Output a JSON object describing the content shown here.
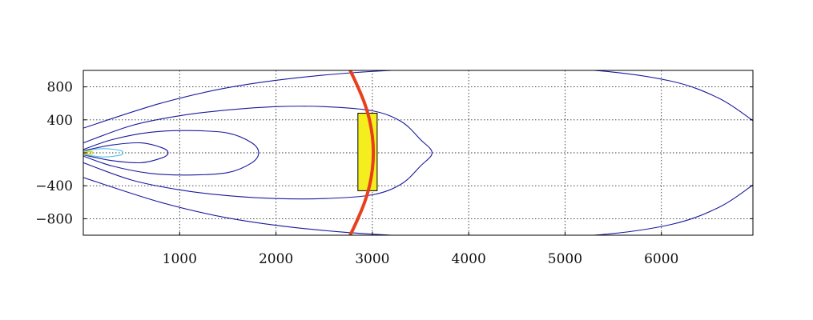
{
  "chart_data": {
    "type": "line",
    "title": "",
    "xlabel": "",
    "ylabel": "",
    "xlim": [
      0,
      6950
    ],
    "ylim": [
      -1000,
      1000
    ],
    "x_ticks": [
      1000,
      2000,
      3000,
      4000,
      5000,
      6000
    ],
    "y_ticks": [
      800,
      400,
      0,
      -400,
      -800
    ],
    "y_tick_labels": [
      "800",
      "400",
      "",
      "−400",
      "−800"
    ],
    "grid": true,
    "colors": {
      "contour": "#1a1a9e",
      "inner_contour": "#4fc3e8",
      "core_contour": "#e6d200",
      "front_line": "#e8401c",
      "box_fill": "#f4ee1e",
      "grid": "#333333"
    },
    "series": [
      {
        "points": [
          [
            0,
            120
          ],
          [
            500,
            330
          ],
          [
            1000,
            450
          ],
          [
            1500,
            520
          ],
          [
            2000,
            560
          ],
          [
            2500,
            560
          ],
          [
            3000,
            510
          ],
          [
            3300,
            380
          ],
          [
            3500,
            160
          ],
          [
            3620,
            0
          ],
          [
            3500,
            -160
          ],
          [
            3300,
            -380
          ],
          [
            3000,
            -510
          ],
          [
            2500,
            -555
          ],
          [
            2000,
            -555
          ],
          [
            1500,
            -520
          ],
          [
            1000,
            -450
          ],
          [
            500,
            -330
          ],
          [
            0,
            -120
          ]
        ]
      },
      {
        "points": [
          [
            0,
            300
          ],
          [
            800,
            600
          ],
          [
            1500,
            790
          ],
          [
            2300,
            920
          ],
          [
            3200,
            1000
          ],
          [
            4300,
            1030
          ],
          [
            5300,
            1000
          ],
          [
            6100,
            870
          ],
          [
            6600,
            660
          ],
          [
            6950,
            390
          ]
        ]
      },
      {
        "points": [
          [
            0,
            -300
          ],
          [
            800,
            -600
          ],
          [
            1500,
            -790
          ],
          [
            2300,
            -920
          ],
          [
            3200,
            -1000
          ],
          [
            4300,
            -1030
          ],
          [
            5300,
            -1000
          ],
          [
            6100,
            -870
          ],
          [
            6600,
            -660
          ],
          [
            6950,
            -390
          ]
        ]
      },
      {
        "points": [
          [
            0,
            40
          ],
          [
            300,
            160
          ],
          [
            700,
            250
          ],
          [
            1100,
            270
          ],
          [
            1500,
            240
          ],
          [
            1750,
            120
          ],
          [
            1820,
            0
          ],
          [
            1750,
            -120
          ],
          [
            1500,
            -240
          ],
          [
            1100,
            -270
          ],
          [
            700,
            -250
          ],
          [
            300,
            -160
          ],
          [
            0,
            -40
          ]
        ]
      },
      {
        "points": [
          [
            0,
            25
          ],
          [
            300,
            95
          ],
          [
            600,
            120
          ],
          [
            820,
            60
          ],
          [
            880,
            0
          ],
          [
            820,
            -60
          ],
          [
            600,
            -120
          ],
          [
            300,
            -95
          ],
          [
            0,
            -25
          ]
        ]
      },
      {
        "points": [
          [
            0,
            20
          ],
          [
            200,
            50
          ],
          [
            380,
            30
          ],
          [
            410,
            0
          ],
          [
            380,
            -30
          ],
          [
            200,
            -50
          ],
          [
            0,
            -20
          ]
        ]
      },
      {
        "points": [
          [
            0,
            10
          ],
          [
            80,
            15
          ],
          [
            100,
            0
          ],
          [
            80,
            -15
          ],
          [
            0,
            -10
          ]
        ]
      },
      {
        "points": [
          [
            2770,
            1000
          ],
          [
            2850,
            800
          ],
          [
            2920,
            600
          ],
          [
            2970,
            400
          ],
          [
            3000,
            200
          ],
          [
            3010,
            0
          ],
          [
            3000,
            -200
          ],
          [
            2970,
            -400
          ],
          [
            2920,
            -600
          ],
          [
            2850,
            -800
          ],
          [
            2770,
            -1000
          ]
        ]
      }
    ],
    "box": {
      "x": [
        2850,
        3050
      ],
      "y": [
        -460,
        480
      ]
    },
    "centerline_y": 0
  }
}
